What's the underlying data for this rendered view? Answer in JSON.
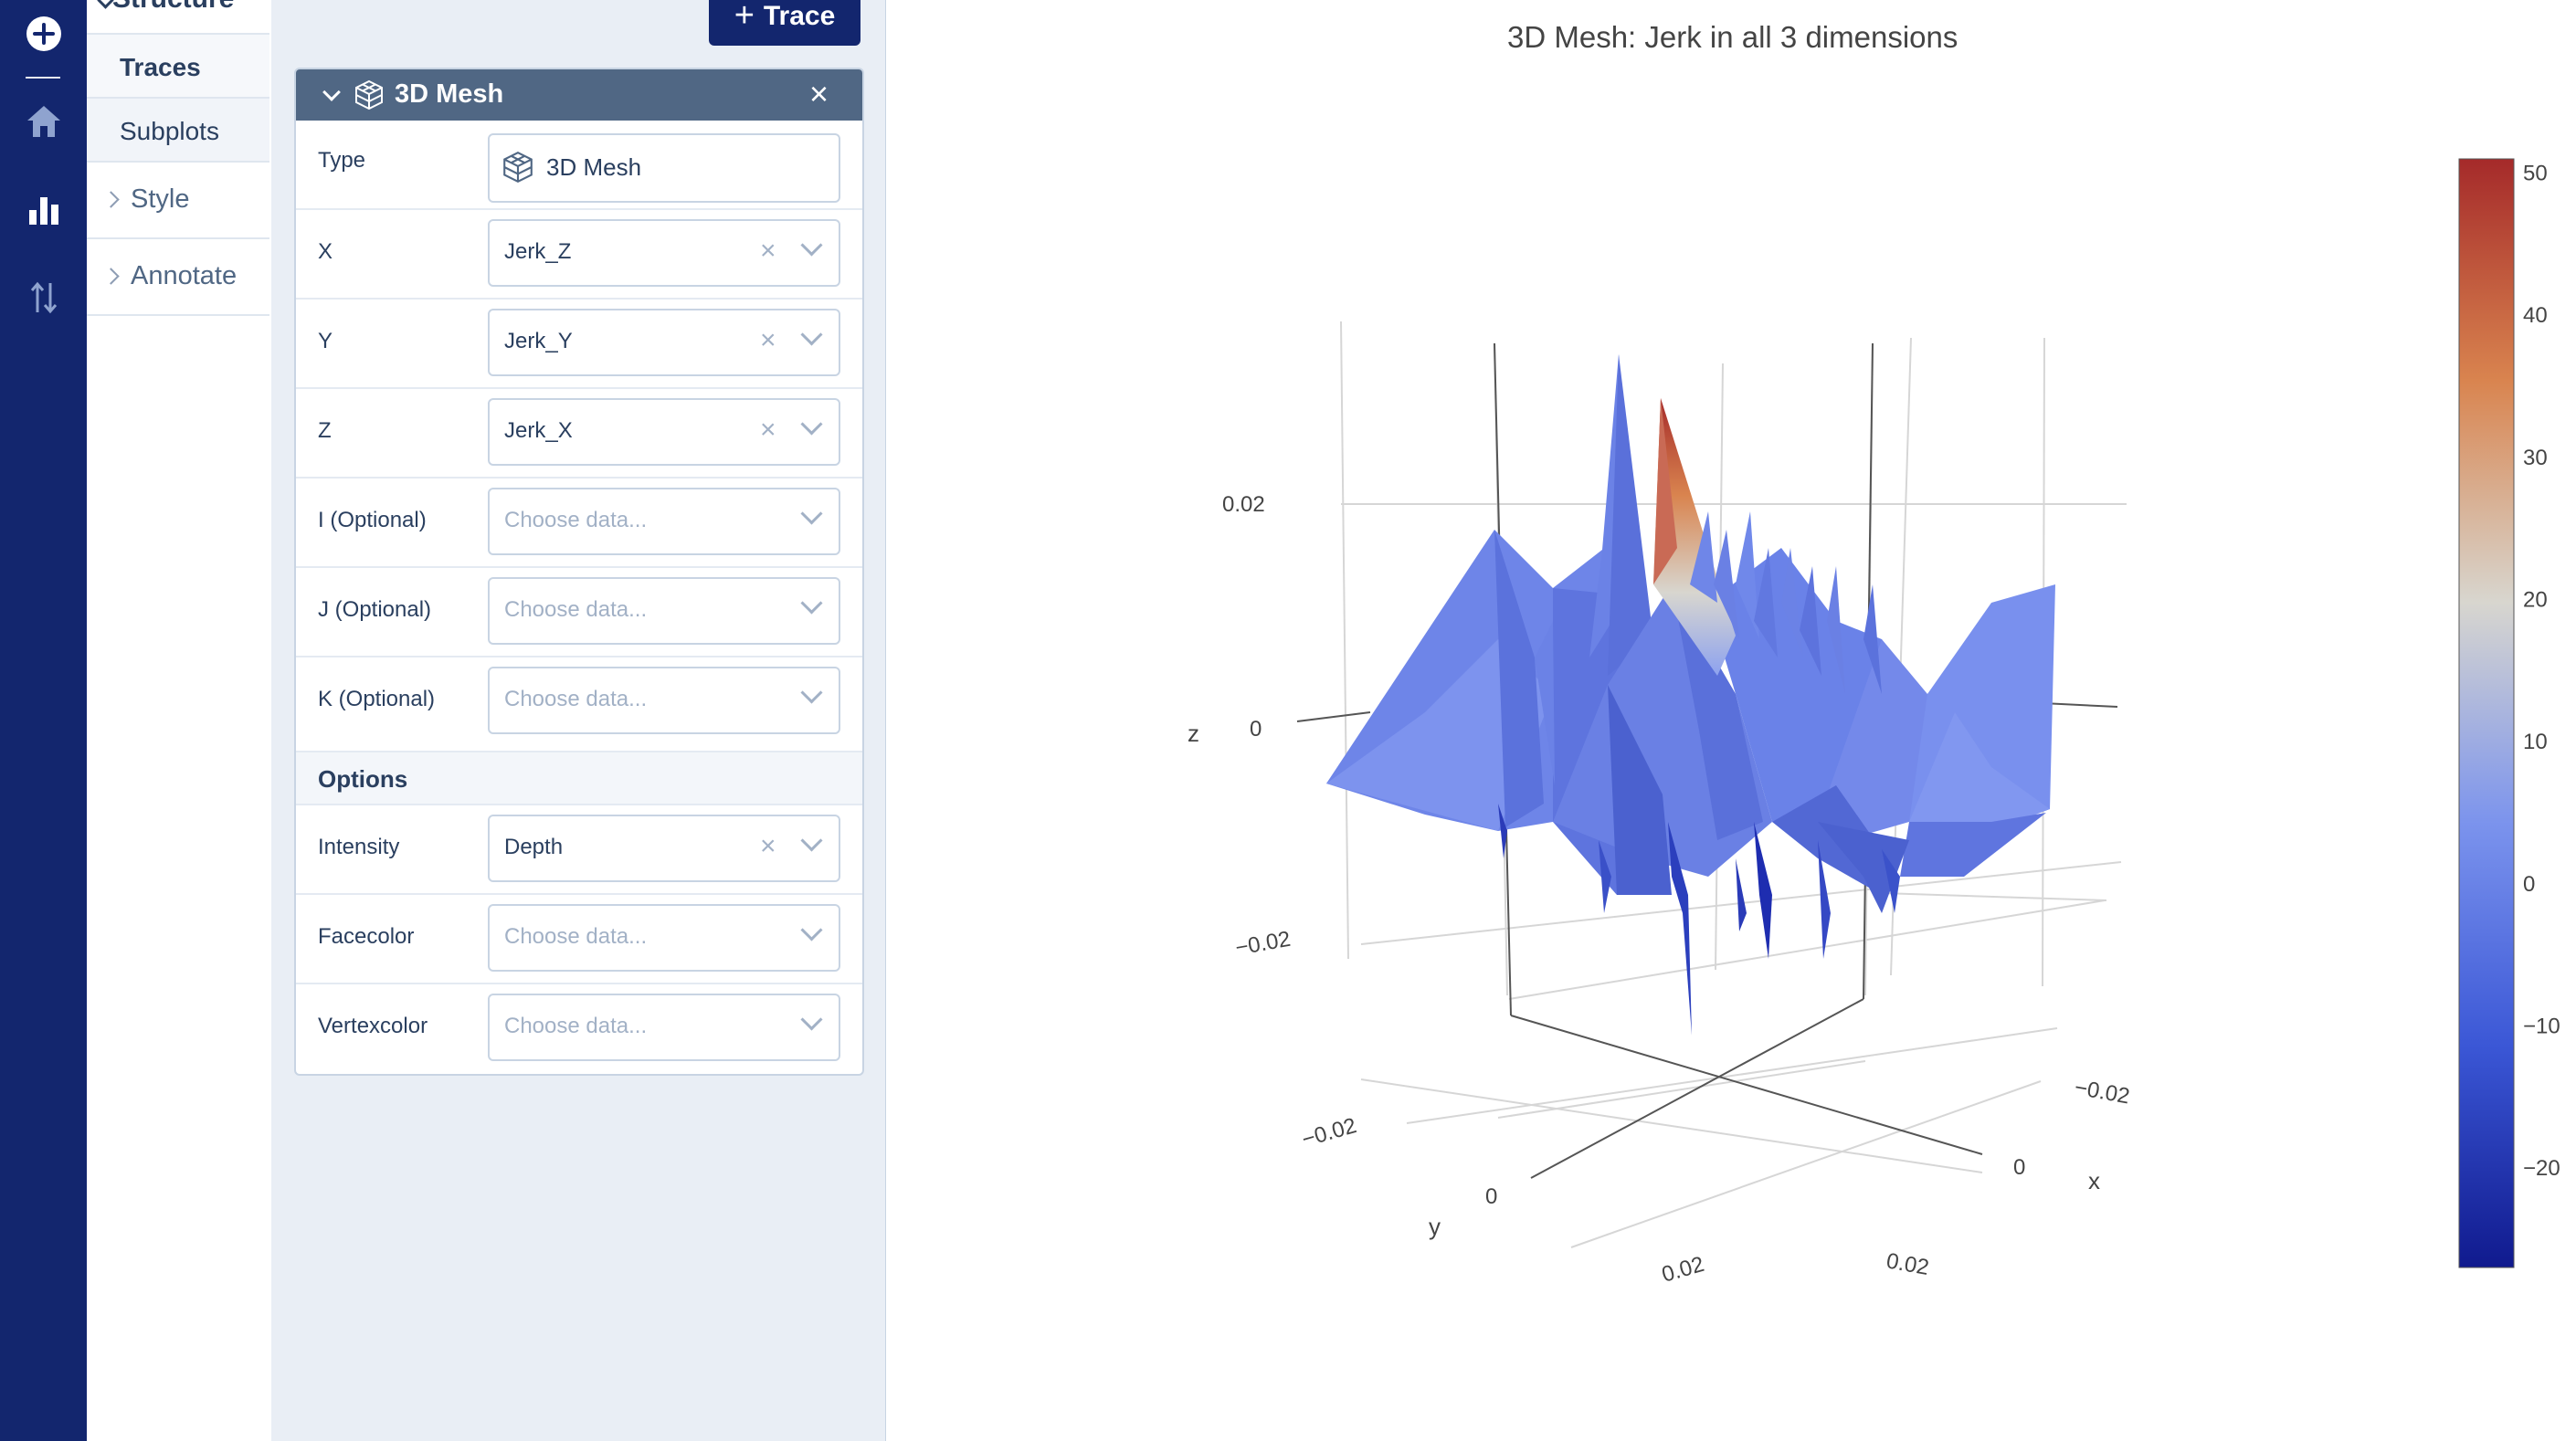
{
  "sidebar": {
    "structure_label": "Structure",
    "items": [
      {
        "label": "Traces",
        "active": true
      },
      {
        "label": "Subplots",
        "active": false
      }
    ],
    "groups": [
      {
        "label": "Style"
      },
      {
        "label": "Annotate"
      }
    ]
  },
  "toolbar": {
    "add_trace_label": "Trace"
  },
  "panel": {
    "title": "3D Mesh",
    "type_label": "Type",
    "type_value": "3D Mesh",
    "fields": [
      {
        "label": "X",
        "value": "Jerk_Z"
      },
      {
        "label": "Y",
        "value": "Jerk_Y"
      },
      {
        "label": "Z",
        "value": "Jerk_X"
      },
      {
        "label": "I (Optional)",
        "placeholder": "Choose data..."
      },
      {
        "label": "J (Optional)",
        "placeholder": "Choose data..."
      },
      {
        "label": "K (Optional)",
        "placeholder": "Choose data..."
      }
    ],
    "options_label": "Options",
    "options": [
      {
        "label": "Intensity",
        "value": "Depth"
      },
      {
        "label": "Facecolor",
        "placeholder": "Choose data..."
      },
      {
        "label": "Vertexcolor",
        "placeholder": "Choose data..."
      }
    ]
  },
  "chart_data": {
    "type": "mesh3d",
    "title": "3D Mesh: Jerk in all 3 dimensions",
    "axes": {
      "x": {
        "label": "x",
        "ticks": [
          "−0.02",
          "0",
          "0.02"
        ]
      },
      "y": {
        "label": "y",
        "ticks": [
          "−0.02",
          "0",
          "0.02"
        ]
      },
      "z": {
        "label": "z",
        "ticks": [
          "−0.02",
          "0",
          "0.02"
        ]
      }
    },
    "colorbar": {
      "ticks": [
        "50",
        "40",
        "30",
        "20",
        "10",
        "0",
        "−10",
        "−20"
      ],
      "range": [
        -27,
        51
      ],
      "colors": [
        "#a52a2a",
        "#d9844f",
        "#d8d6cf",
        "#7b93ed",
        "#3b57d6",
        "#101a8e"
      ]
    }
  }
}
